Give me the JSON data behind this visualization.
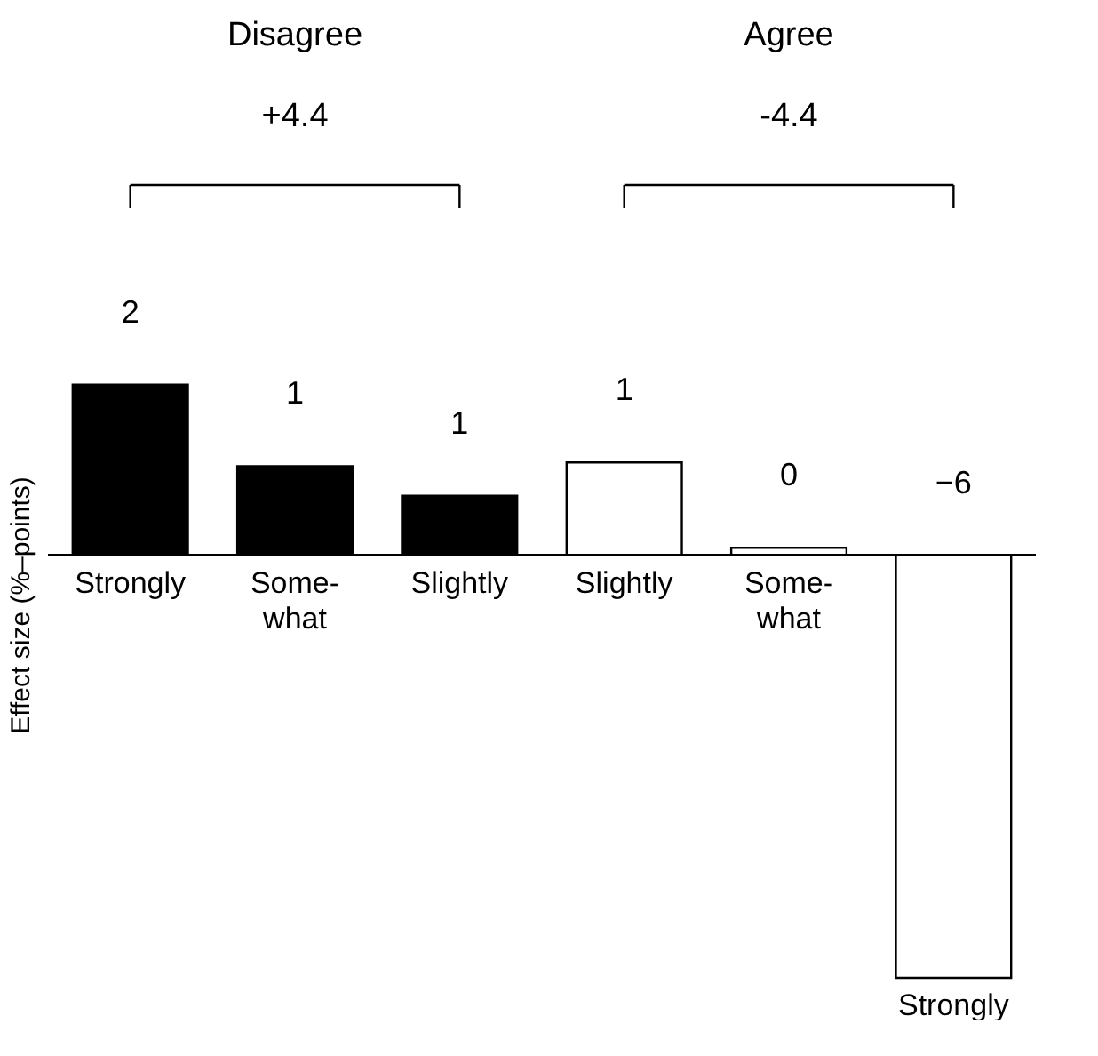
{
  "chart_data": {
    "type": "bar",
    "ylabel": "Effect size (%–points)",
    "categories": [
      "Strongly",
      "Some-\nwhat",
      "Slightly",
      "Slightly",
      "Some-\nwhat",
      "Strongly"
    ],
    "values": [
      2.3,
      1.2,
      0.8,
      1.25,
      0.1,
      -5.7
    ],
    "value_labels": [
      "2",
      "1",
      "1",
      "1",
      "0",
      "−6"
    ],
    "colors": [
      "#000000",
      "#000000",
      "#000000",
      "#ffffff",
      "#ffffff",
      "#ffffff"
    ],
    "annotations": [
      "Disagree",
      "Agree",
      "+4.4",
      "-4.4"
    ]
  }
}
